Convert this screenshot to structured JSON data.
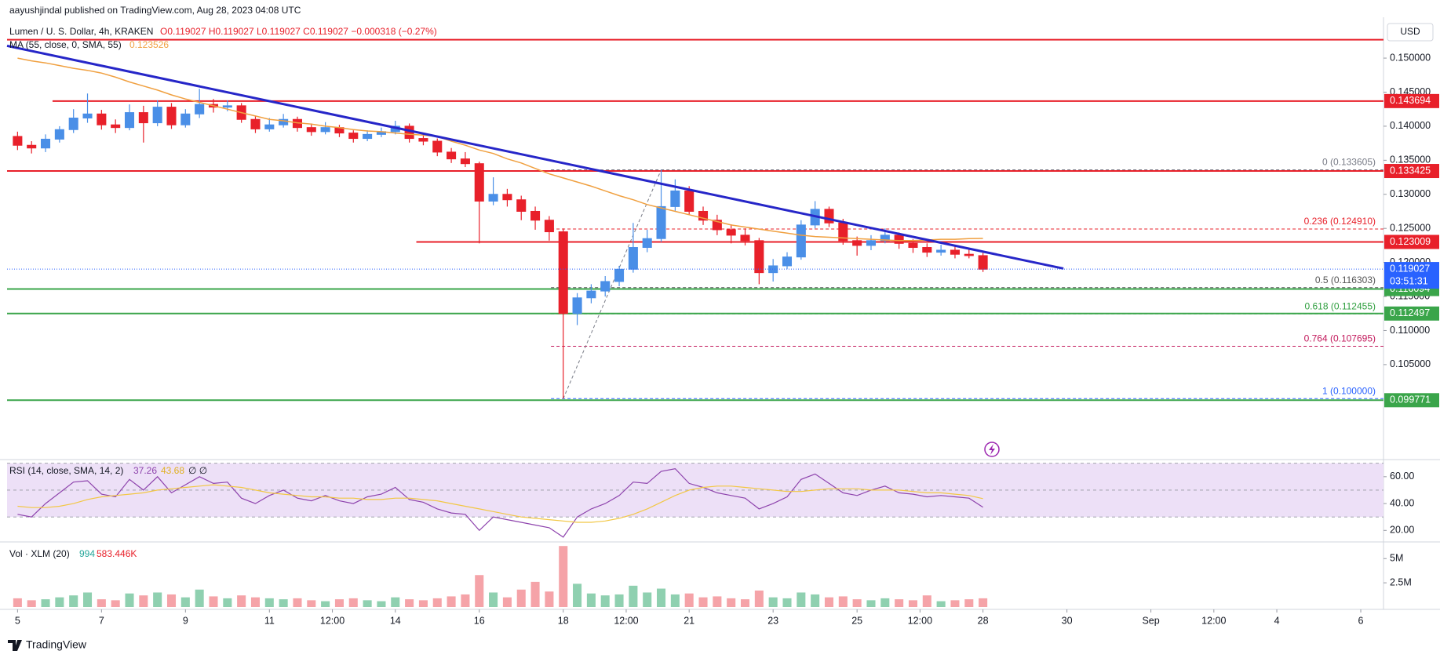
{
  "header": {
    "publisher": "aayushjindal published on TradingView.com, Aug 28, 2023 04:08 UTC",
    "brand": "TradingView",
    "currency": "USD"
  },
  "chart_data": {
    "type": "candlestick",
    "title": "Lumen / U. S. Dollar, 4h, KRAKEN",
    "ohlc_text": "O0.119027 H0.119027 L0.119027 C0.119027 −0.000318 (−0.27%)",
    "up_color": "#4a8fe7",
    "down_color": "#e8202a",
    "x": [
      0,
      8,
      16,
      24,
      32,
      40,
      48,
      56,
      64,
      72,
      80,
      88,
      96,
      104,
      112,
      120,
      128,
      136,
      144,
      152,
      160,
      168,
      176,
      184,
      192,
      200,
      208,
      216,
      224,
      232,
      240,
      248,
      256,
      264,
      272,
      280,
      288,
      296,
      304,
      312,
      320,
      328,
      336,
      344,
      352,
      360,
      368,
      376,
      384,
      392,
      400,
      408,
      416,
      424,
      432,
      440,
      448,
      456,
      464,
      472,
      480,
      488,
      496,
      504,
      512,
      520,
      528,
      536,
      544,
      552
    ],
    "open": [
      0.1385,
      0.1372,
      0.1368,
      0.1381,
      0.1395,
      0.1412,
      0.1418,
      0.1402,
      0.1398,
      0.142,
      0.1405,
      0.1428,
      0.1402,
      0.1418,
      0.1432,
      0.1428,
      0.143,
      0.141,
      0.1396,
      0.1402,
      0.141,
      0.1398,
      0.1392,
      0.1398,
      0.139,
      0.1382,
      0.1388,
      0.1392,
      0.14,
      0.1382,
      0.1378,
      0.1362,
      0.1352,
      0.1345,
      0.129,
      0.13,
      0.1292,
      0.1275,
      0.1262,
      0.1245,
      0.1125,
      0.1148,
      0.1158,
      0.1172,
      0.119,
      0.1222,
      0.1235,
      0.1282,
      0.1305,
      0.1275,
      0.1262,
      0.1248,
      0.124,
      0.1232,
      0.1185,
      0.1195,
      0.1208,
      0.1255,
      0.1278,
      0.1258,
      0.1232,
      0.1225,
      0.1232,
      0.124,
      0.1228,
      0.1222,
      0.1215,
      0.1218,
      0.1212,
      0.121
    ],
    "high": [
      0.1392,
      0.1378,
      0.1388,
      0.14,
      0.1425,
      0.1448,
      0.1424,
      0.141,
      0.1432,
      0.143,
      0.1438,
      0.1434,
      0.1425,
      0.1455,
      0.144,
      0.1438,
      0.1434,
      0.1415,
      0.1412,
      0.1418,
      0.1414,
      0.1404,
      0.1406,
      0.1402,
      0.1394,
      0.1394,
      0.1398,
      0.1408,
      0.1404,
      0.1388,
      0.1382,
      0.1368,
      0.1362,
      0.1348,
      0.1325,
      0.1308,
      0.1298,
      0.1282,
      0.1268,
      0.125,
      0.1155,
      0.1168,
      0.118,
      0.1195,
      0.1258,
      0.1248,
      0.1336,
      0.1322,
      0.1312,
      0.1282,
      0.127,
      0.1256,
      0.125,
      0.1236,
      0.1205,
      0.1215,
      0.1262,
      0.129,
      0.1282,
      0.1264,
      0.1238,
      0.124,
      0.125,
      0.1244,
      0.1234,
      0.1228,
      0.1226,
      0.1224,
      0.122,
      0.1214
    ],
    "low": [
      0.1365,
      0.136,
      0.1362,
      0.1376,
      0.139,
      0.1405,
      0.1395,
      0.139,
      0.1394,
      0.1376,
      0.14,
      0.1396,
      0.1398,
      0.1412,
      0.142,
      0.1422,
      0.1405,
      0.139,
      0.1392,
      0.1398,
      0.1392,
      0.1386,
      0.1388,
      0.1384,
      0.1376,
      0.1378,
      0.1384,
      0.1388,
      0.1376,
      0.1372,
      0.1356,
      0.1346,
      0.134,
      0.1228,
      0.1284,
      0.1282,
      0.1262,
      0.1248,
      0.1232,
      0.1,
      0.1108,
      0.114,
      0.115,
      0.1165,
      0.1185,
      0.1215,
      0.123,
      0.1275,
      0.127,
      0.1255,
      0.124,
      0.1228,
      0.1225,
      0.1168,
      0.1172,
      0.119,
      0.1204,
      0.125,
      0.1252,
      0.1226,
      0.121,
      0.1218,
      0.1228,
      0.122,
      0.1214,
      0.1208,
      0.121,
      0.1206,
      0.1206,
      0.1186
    ],
    "close": [
      0.1372,
      0.1368,
      0.1381,
      0.1395,
      0.1412,
      0.1418,
      0.1402,
      0.1398,
      0.142,
      0.1405,
      0.1428,
      0.1402,
      0.1418,
      0.1432,
      0.1428,
      0.143,
      0.141,
      0.1396,
      0.1402,
      0.141,
      0.1398,
      0.1392,
      0.1398,
      0.139,
      0.1382,
      0.1388,
      0.1392,
      0.14,
      0.1382,
      0.1378,
      0.1362,
      0.1352,
      0.1345,
      0.129,
      0.13,
      0.1292,
      0.1275,
      0.1262,
      0.1245,
      0.1125,
      0.1148,
      0.1158,
      0.1172,
      0.119,
      0.1222,
      0.1235,
      0.1282,
      0.1305,
      0.1275,
      0.1262,
      0.1248,
      0.124,
      0.1232,
      0.1185,
      0.1195,
      0.1208,
      0.1255,
      0.1278,
      0.1258,
      0.1232,
      0.1225,
      0.1232,
      0.124,
      0.1228,
      0.1222,
      0.1215,
      0.1218,
      0.1212,
      0.121,
      0.119
    ],
    "series": [
      {
        "name": "MA (55, close, 0, SMA, 55)",
        "last_label": "0.123526",
        "color": "#f0a040",
        "values": [
          0.15,
          0.1496,
          0.1493,
          0.1489,
          0.1485,
          0.1482,
          0.1478,
          0.1472,
          0.1465,
          0.1459,
          0.1453,
          0.1446,
          0.144,
          0.1435,
          0.143,
          0.1425,
          0.142,
          0.1415,
          0.141,
          0.1408,
          0.1405,
          0.1403,
          0.14,
          0.1398,
          0.1395,
          0.1393,
          0.1392,
          0.139,
          0.1388,
          0.1387,
          0.1385,
          0.1378,
          0.1372,
          0.1365,
          0.136,
          0.1352,
          0.1346,
          0.1338,
          0.133,
          0.1324,
          0.1318,
          0.1312,
          0.1305,
          0.1298,
          0.1292,
          0.1285,
          0.128,
          0.1275,
          0.127,
          0.1265,
          0.126,
          0.1255,
          0.1252,
          0.1249,
          0.1246,
          0.1243,
          0.124,
          0.1238,
          0.1237,
          0.1236,
          0.1235,
          0.1234,
          0.1233,
          0.1232,
          0.1232,
          0.1233,
          0.1234,
          0.1234,
          0.1235,
          0.123526
        ]
      }
    ],
    "levels": [
      {
        "value": 0.1527,
        "color": "#e8202a",
        "from": -6,
        "labeled": false
      },
      {
        "value": 0.143694,
        "color": "#e8202a",
        "from": 20,
        "labeled": true
      },
      {
        "value": 0.133425,
        "color": "#e8202a",
        "from": -6,
        "labeled": true
      },
      {
        "value": 0.123009,
        "color": "#e8202a",
        "from": 228,
        "labeled": true
      },
      {
        "value": 0.116094,
        "color": "#3aa54a",
        "from": -6,
        "labeled": true
      },
      {
        "value": 0.112497,
        "color": "#3aa54a",
        "from": -6,
        "labeled": true
      },
      {
        "value": 0.099771,
        "color": "#3aa54a",
        "from": -6,
        "labeled": true
      }
    ],
    "fib": {
      "from": 305,
      "x": [
        312,
        368
      ],
      "levels": [
        {
          "value": 0.133605,
          "label": "0 (0.133605)",
          "color": "#787b86"
        },
        {
          "value": 0.12491,
          "label": "0.236 (0.124910)",
          "color": "#e8202a"
        },
        {
          "value": 0.116303,
          "label": "0.5 (0.116303)",
          "color": "#555555"
        },
        {
          "value": 0.112455,
          "label": "0.618 (0.112455)",
          "color": "#2e9e3e"
        },
        {
          "value": 0.107695,
          "label": "0.764 (0.107695)",
          "color": "#c2185b"
        },
        {
          "value": 0.1,
          "label": "1 (0.100000)",
          "color": "#2962ff"
        }
      ]
    },
    "trendline": {
      "color": "#2626c8",
      "x": [
        -6,
        598
      ],
      "y": [
        0.1518,
        0.1191
      ]
    },
    "last_price": 0.119027,
    "countdown": "03:51:31",
    "last_color": "#2962ff",
    "xlim": [
      -6,
      781
    ],
    "xticks": [
      {
        "value": 0,
        "label": "5"
      },
      {
        "value": 48,
        "label": "7"
      },
      {
        "value": 96,
        "label": "9"
      },
      {
        "value": 144,
        "label": "11"
      },
      {
        "value": 180,
        "label": "12:00"
      },
      {
        "value": 216,
        "label": "14"
      },
      {
        "value": 264,
        "label": "16"
      },
      {
        "value": 312,
        "label": "18"
      },
      {
        "value": 348,
        "label": "12:00"
      },
      {
        "value": 384,
        "label": "21"
      },
      {
        "value": 432,
        "label": "23"
      },
      {
        "value": 480,
        "label": "25"
      },
      {
        "value": 516,
        "label": "12:00"
      },
      {
        "value": 552,
        "label": "28"
      },
      {
        "value": 600,
        "label": "30"
      },
      {
        "value": 648,
        "label": "Sep"
      },
      {
        "value": 684,
        "label": "12:00"
      },
      {
        "value": 720,
        "label": "4"
      },
      {
        "value": 768,
        "label": "6"
      }
    ],
    "ylim": [
      0.0914,
      0.1545
    ],
    "yticks": [
      {
        "value": 0.105,
        "label": "0.105000"
      },
      {
        "value": 0.11,
        "label": "0.110000"
      },
      {
        "value": 0.115,
        "label": "0.115000"
      },
      {
        "value": 0.12,
        "label": "0.120000"
      },
      {
        "value": 0.125,
        "label": "0.125000"
      },
      {
        "value": 0.13,
        "label": "0.130000"
      },
      {
        "value": 0.135,
        "label": "0.135000"
      },
      {
        "value": 0.14,
        "label": "0.140000"
      },
      {
        "value": 0.145,
        "label": "0.145000"
      },
      {
        "value": 0.15,
        "label": "0.150000"
      }
    ],
    "rsi": {
      "title": "RSI (14, close, SMA, 14, 2)",
      "value_text": "37.26",
      "ma_text": "43.68",
      "extra_text": "∅ ∅",
      "color": "#8e44ad",
      "ma_color": "#f2c744",
      "band_color": "#ede0f7",
      "values": [
        32,
        30,
        40,
        48,
        56,
        57,
        47,
        45,
        58,
        50,
        60,
        48,
        54,
        60,
        55,
        56,
        44,
        40,
        46,
        50,
        44,
        42,
        46,
        42,
        40,
        45,
        47,
        52,
        43,
        41,
        36,
        33,
        32,
        20,
        30,
        28,
        26,
        24,
        22,
        15,
        30,
        36,
        40,
        46,
        56,
        55,
        64,
        66,
        55,
        52,
        48,
        46,
        44,
        36,
        40,
        45,
        58,
        62,
        55,
        48,
        46,
        50,
        53,
        48,
        47,
        45,
        46,
        45,
        44,
        37.26
      ],
      "ma_values": [
        38,
        37,
        37,
        38,
        40,
        43,
        45,
        46,
        47,
        48,
        50,
        51,
        52,
        53,
        54,
        53,
        52,
        50,
        48,
        47,
        46,
        45,
        45,
        44,
        44,
        43,
        43,
        44,
        44,
        43,
        42,
        40,
        38,
        36,
        34,
        32,
        30,
        29,
        28,
        27,
        26,
        26,
        27,
        29,
        32,
        36,
        41,
        46,
        50,
        52,
        53,
        53,
        52,
        51,
        50,
        49,
        49,
        50,
        51,
        51,
        51,
        50,
        50,
        50,
        49,
        48,
        48,
        47,
        46,
        43.68
      ],
      "bands": [
        30,
        50,
        70
      ],
      "ylim": [
        12,
        71
      ],
      "yticks": [
        {
          "value": 20,
          "label": "20.00"
        },
        {
          "value": 40,
          "label": "40.00"
        },
        {
          "value": 60,
          "label": "60.00"
        }
      ]
    },
    "volume": {
      "title": "Vol · XLM (20)",
      "value_text": "994",
      "ma_text": "583.446K",
      "values": [
        900000,
        700000,
        800000,
        1000000,
        1200000,
        1500000,
        800000,
        700000,
        1400000,
        1200000,
        1500000,
        1300000,
        1000000,
        1800000,
        1100000,
        900000,
        1200000,
        1000000,
        900000,
        800000,
        900000,
        700000,
        600000,
        800000,
        900000,
        700000,
        600000,
        1000000,
        800000,
        700000,
        900000,
        1100000,
        1300000,
        3300000,
        1500000,
        1000000,
        1800000,
        2600000,
        1600000,
        6300000,
        2400000,
        1400000,
        1200000,
        1300000,
        2200000,
        1500000,
        1900000,
        1300000,
        1400000,
        1000000,
        1100000,
        900000,
        800000,
        1700000,
        1000000,
        900000,
        1500000,
        1300000,
        1000000,
        1100000,
        800000,
        700000,
        900000,
        800000,
        700000,
        1200000,
        600000,
        700000,
        800000,
        900000
      ],
      "up_color": "#8fd0b0",
      "down_color": "#f5a3a8",
      "ylim": [
        0,
        6640000
      ],
      "yticks": [
        {
          "value": 2500000,
          "label": "2.5M"
        },
        {
          "value": 5000000,
          "label": "5M"
        }
      ]
    }
  }
}
